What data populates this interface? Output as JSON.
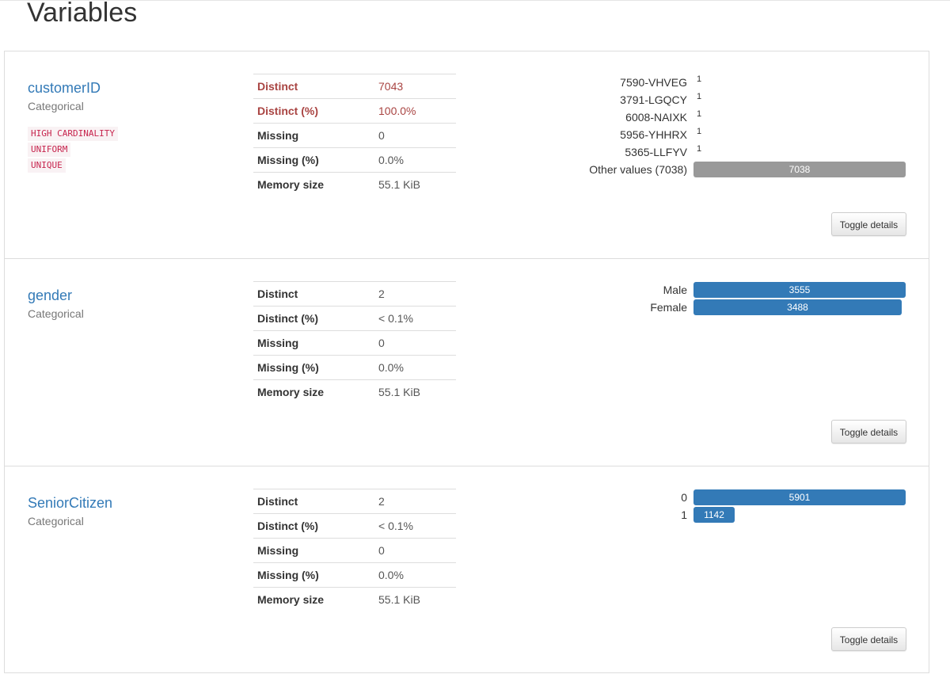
{
  "page": {
    "title": "Variables"
  },
  "colors": {
    "link": "#337ab7",
    "alert": "#a94442",
    "bar": "#337ab7",
    "bar_other": "#999999",
    "badge_text": "#c7254e",
    "badge_bg": "#f9f2f4"
  },
  "variables": [
    {
      "name": "customerID",
      "type": "Categorical",
      "badges": [
        "HIGH CARDINALITY",
        "UNIFORM",
        "UNIQUE"
      ],
      "stats": [
        {
          "label": "Distinct",
          "value": "7043",
          "alert": true
        },
        {
          "label": "Distinct (%)",
          "value": "100.0%",
          "alert": true
        },
        {
          "label": "Missing",
          "value": "0",
          "alert": false
        },
        {
          "label": "Missing (%)",
          "value": "0.0%",
          "alert": false
        },
        {
          "label": "Memory size",
          "value": "55.1 KiB",
          "alert": false
        }
      ],
      "freq": [
        {
          "label": "7590-VHVEG",
          "count": 1,
          "other": false
        },
        {
          "label": "3791-LGQCY",
          "count": 1,
          "other": false
        },
        {
          "label": "6008-NAIXK",
          "count": 1,
          "other": false
        },
        {
          "label": "5956-YHHRX",
          "count": 1,
          "other": false
        },
        {
          "label": "5365-LLFYV",
          "count": 1,
          "other": false
        },
        {
          "label": "Other values (7038)",
          "count": 7038,
          "other": true
        }
      ],
      "freq_max": 7038,
      "toggle_label": "Toggle details"
    },
    {
      "name": "gender",
      "type": "Categorical",
      "badges": [],
      "stats": [
        {
          "label": "Distinct",
          "value": "2",
          "alert": false
        },
        {
          "label": "Distinct (%)",
          "value": "< 0.1%",
          "alert": false
        },
        {
          "label": "Missing",
          "value": "0",
          "alert": false
        },
        {
          "label": "Missing (%)",
          "value": "0.0%",
          "alert": false
        },
        {
          "label": "Memory size",
          "value": "55.1 KiB",
          "alert": false
        }
      ],
      "freq": [
        {
          "label": "Male",
          "count": 3555,
          "other": false
        },
        {
          "label": "Female",
          "count": 3488,
          "other": false
        }
      ],
      "freq_max": 3555,
      "toggle_label": "Toggle details"
    },
    {
      "name": "SeniorCitizen",
      "type": "Categorical",
      "badges": [],
      "stats": [
        {
          "label": "Distinct",
          "value": "2",
          "alert": false
        },
        {
          "label": "Distinct (%)",
          "value": "< 0.1%",
          "alert": false
        },
        {
          "label": "Missing",
          "value": "0",
          "alert": false
        },
        {
          "label": "Missing (%)",
          "value": "0.0%",
          "alert": false
        },
        {
          "label": "Memory size",
          "value": "55.1 KiB",
          "alert": false
        }
      ],
      "freq": [
        {
          "label": "0",
          "count": 5901,
          "other": false
        },
        {
          "label": "1",
          "count": 1142,
          "other": false
        }
      ],
      "freq_max": 5901,
      "toggle_label": "Toggle details"
    }
  ]
}
